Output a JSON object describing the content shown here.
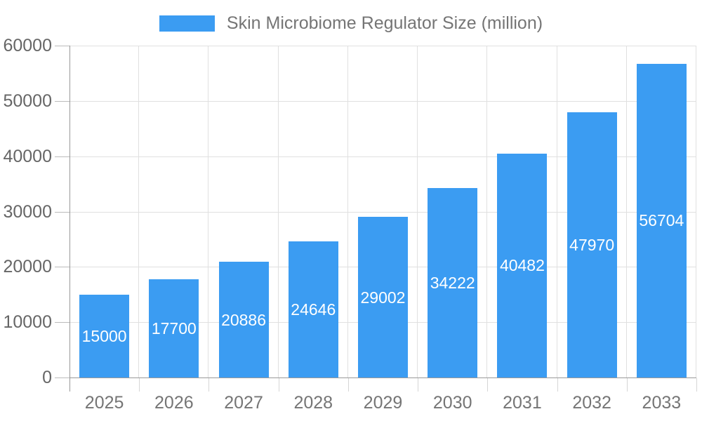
{
  "chart_data": {
    "type": "bar",
    "title": "Skin Microbiome Regulator Size (million)",
    "categories": [
      "2025",
      "2026",
      "2027",
      "2028",
      "2029",
      "2030",
      "2031",
      "2032",
      "2033"
    ],
    "values": [
      15000,
      17700,
      20886,
      24646,
      29002,
      34222,
      40482,
      47970,
      56704
    ],
    "value_labels": [
      "15000",
      "17700",
      "20886",
      "24646",
      "29002",
      "34222",
      "40482",
      "47970",
      "56704"
    ],
    "xlabel": "",
    "ylabel": "",
    "ylim": [
      0,
      60000
    ],
    "ytick_step": 10000,
    "ytick_labels": [
      "0",
      "10000",
      "20000",
      "30000",
      "40000",
      "50000",
      "60000"
    ],
    "grid": true,
    "legend_position": "top-center"
  },
  "legend": {
    "label": "Skin Microbiome Regulator Size (million)"
  },
  "colors": {
    "bar": "#3B9CF2",
    "grid_line": "#e0e0e0",
    "axis_line": "#999999",
    "y_tick": "#bbbbbb",
    "x_tick": "#d6d6d6",
    "axis_label_text": "#666666",
    "x_label_text": "#757575",
    "legend_text": "#757575",
    "value_label_text": "#ffffff",
    "background": "#ffffff"
  }
}
